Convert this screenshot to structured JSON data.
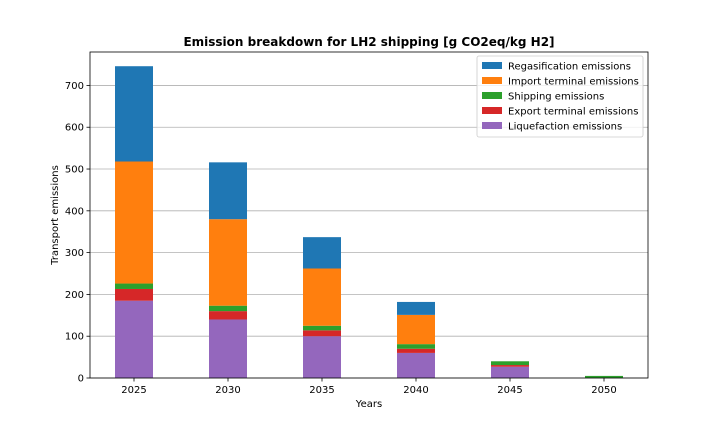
{
  "chart_data": {
    "type": "bar",
    "stacked": true,
    "title": "Emission breakdown for LH2 shipping [g CO2eq/kg H2]",
    "xlabel": "Years",
    "ylabel": "Transport emissions",
    "categories": [
      "2025",
      "2030",
      "2035",
      "2040",
      "2045",
      "2050"
    ],
    "ylim": [
      0,
      780
    ],
    "yticks": [
      0,
      100,
      200,
      300,
      400,
      500,
      600,
      700
    ],
    "grid": "horizontal",
    "legend_position": "top-right",
    "series": [
      {
        "name": "Liquefaction emissions",
        "color": "#9467bd",
        "values": [
          185,
          140,
          100,
          60,
          27,
          0
        ]
      },
      {
        "name": "Export terminal emissions",
        "color": "#d62728",
        "values": [
          28,
          20,
          14,
          10,
          4,
          0
        ]
      },
      {
        "name": "Shipping emissions",
        "color": "#2ca02c",
        "values": [
          13,
          13,
          11,
          11,
          9,
          5
        ]
      },
      {
        "name": "Import terminal emissions",
        "color": "#ff7f0e",
        "values": [
          292,
          207,
          137,
          70,
          0,
          0
        ]
      },
      {
        "name": "Regasification emissions",
        "color": "#1f77b4",
        "values": [
          228,
          136,
          75,
          31,
          0,
          0
        ]
      }
    ]
  }
}
